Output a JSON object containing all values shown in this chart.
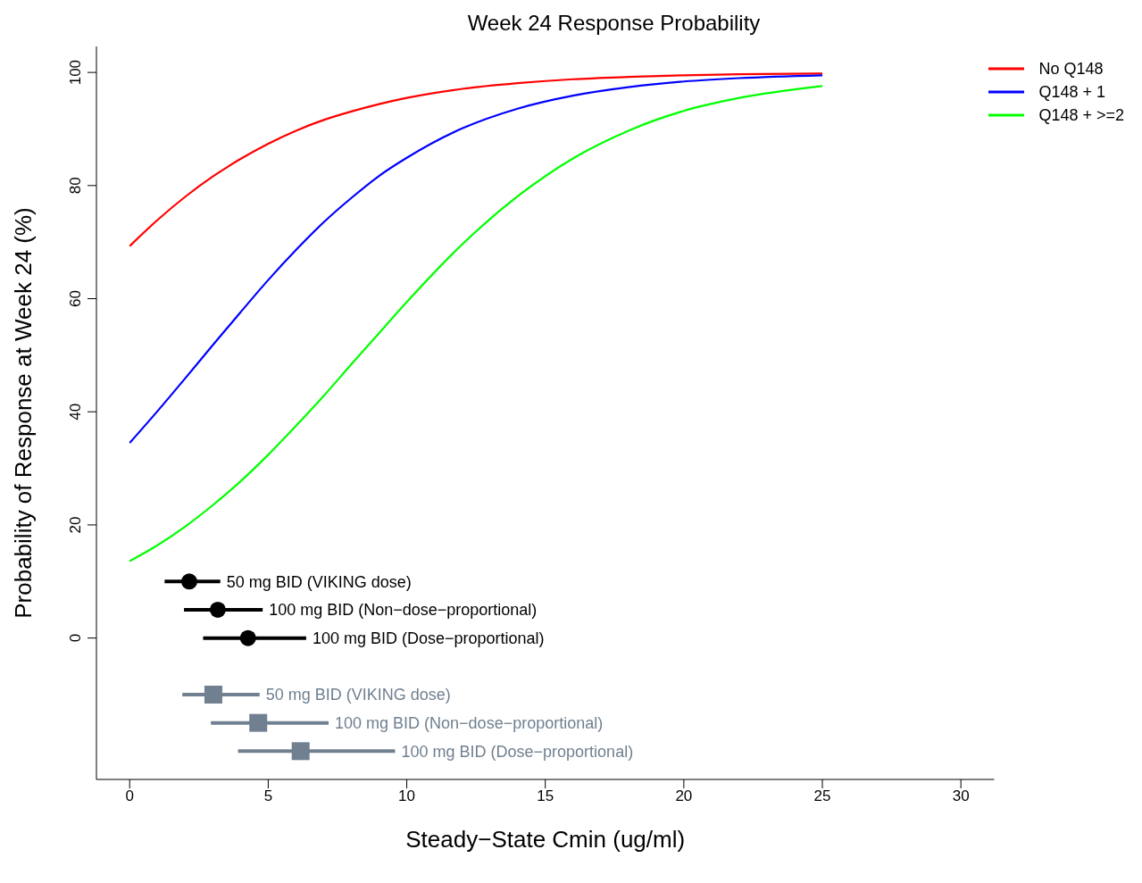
{
  "chart_data": {
    "type": "line",
    "title": "Week 24 Response Probability",
    "xlabel": "Steady−State Cmin (ug/ml)",
    "ylabel": "Probability of Response at Week 24 (%)",
    "xlim": [
      -1.2,
      31.2
    ],
    "xticks": [
      0,
      5,
      10,
      15,
      20,
      25,
      30
    ],
    "ylim": [
      -25,
      104.6
    ],
    "yticks": [
      0,
      20,
      40,
      60,
      80,
      100
    ],
    "legend": "top right",
    "marker": "none",
    "line_style": "solid",
    "series": [
      {
        "name": "No Q148",
        "color": "#ff0000",
        "x": [
          0,
          1,
          2,
          3,
          4,
          5,
          6,
          7,
          8,
          9,
          10,
          12,
          14,
          16,
          18,
          20,
          22,
          25
        ],
        "values": [
          69.3,
          73.9,
          78.0,
          81.6,
          84.7,
          87.4,
          89.7,
          91.6,
          93.1,
          94.4,
          95.5,
          97.1,
          98.1,
          98.8,
          99.2,
          99.5,
          99.7,
          99.8
        ]
      },
      {
        "name": "Q148 + 1",
        "color": "#0000ff",
        "x": [
          0,
          1,
          2,
          3,
          4,
          5,
          6,
          7,
          8,
          9,
          10,
          12,
          14,
          16,
          18,
          20,
          22,
          25
        ],
        "values": [
          34.5,
          40.1,
          45.9,
          51.8,
          57.6,
          63.3,
          68.6,
          73.5,
          77.8,
          81.7,
          84.9,
          90.1,
          93.6,
          95.9,
          97.4,
          98.4,
          99.0,
          99.5
        ]
      },
      {
        "name": "Q148 + >=2",
        "color": "#00ff00",
        "x": [
          0,
          1,
          2,
          3,
          4,
          5,
          6,
          7,
          8,
          9,
          10,
          12,
          14,
          16,
          18,
          20,
          22,
          25
        ],
        "values": [
          13.6,
          16.4,
          19.7,
          23.5,
          27.7,
          32.4,
          37.5,
          42.8,
          48.4,
          53.9,
          59.4,
          69.6,
          78.1,
          84.8,
          89.7,
          93.2,
          95.5,
          97.6
        ]
      },
      {
        "type": "scatter",
        "marker": "circle",
        "color": "#000000",
        "x": [
          2.15,
          3.18,
          4.27
        ],
        "values": [
          10,
          5,
          0
        ],
        "xerrors": [
          [
            1.26,
            3.27
          ],
          [
            1.96,
            4.8
          ],
          [
            2.65,
            6.37
          ]
        ]
      },
      {
        "type": "scatter",
        "marker": "square",
        "color": "#708090",
        "x": [
          3.02,
          4.64,
          6.17
        ],
        "values": [
          -10,
          -15,
          -20
        ],
        "xerrors": [
          [
            1.9,
            4.69
          ],
          [
            2.93,
            7.18
          ],
          [
            3.91,
            9.58
          ]
        ]
      }
    ],
    "annotations": [
      {
        "text": "50 mg BID (VIKING dose)",
        "x": 3.27,
        "y": 10
      },
      {
        "text": "100 mg BID (Non−dose−proportional)",
        "x": 4.8,
        "y": 5
      },
      {
        "text": "100 mg BID (Dose−proportional)",
        "x": 6.37,
        "y": 0
      },
      {
        "text": "50 mg BID (VIKING dose)",
        "x": 4.69,
        "y": -10
      },
      {
        "text": "100 mg BID (Non−dose−proportional)",
        "x": 7.18,
        "y": -15
      },
      {
        "text": "100 mg BID (Dose−proportional)",
        "x": 9.58,
        "y": -20
      }
    ]
  }
}
